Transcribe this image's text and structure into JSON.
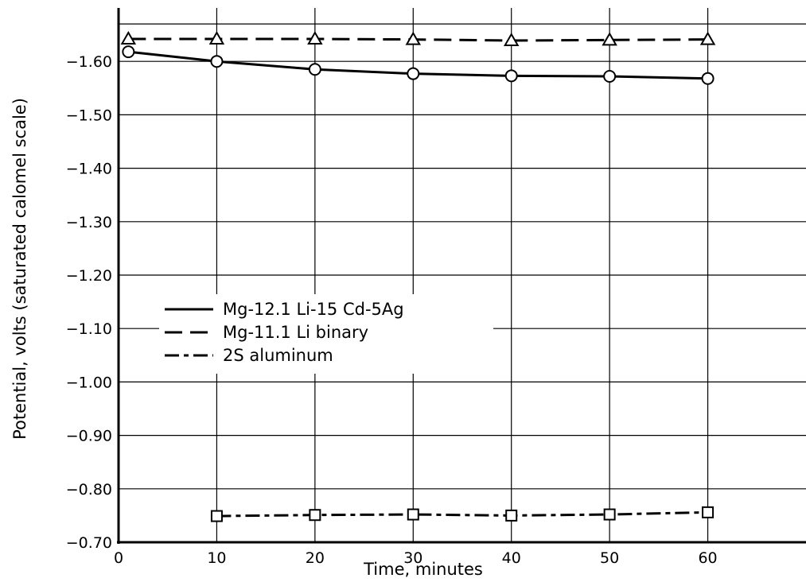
{
  "chart_data": {
    "type": "line",
    "xlabel": "Time, minutes",
    "ylabel": "Potential, volts (saturated calomel scale)",
    "xlim": [
      0,
      70
    ],
    "ylim": [
      -0.7,
      -1.7
    ],
    "x_ticks": [
      0,
      10,
      20,
      30,
      40,
      50,
      60
    ],
    "x_tick_labels": [
      "0",
      "10",
      "20",
      "30",
      "40",
      "50",
      "60"
    ],
    "y_ticks": [
      -0.7,
      -0.8,
      -0.9,
      -1.0,
      -1.1,
      -1.2,
      -1.3,
      -1.4,
      -1.5,
      -1.6
    ],
    "y_tick_labels": [
      "−0.70",
      "−0.80",
      "−0.90",
      "−1.00",
      "−1.10",
      "−1.20",
      "−1.30",
      "−1.40",
      "−1.50",
      "−1.60"
    ],
    "grid": true,
    "legend_position": "center-left",
    "series": [
      {
        "name": "Mg-12.1 Li-15 Cd-5Ag",
        "line_style": "solid",
        "marker": "circle",
        "x": [
          1,
          10,
          20,
          30,
          40,
          50,
          60
        ],
        "y": [
          -1.618,
          -1.6,
          -1.585,
          -1.577,
          -1.573,
          -1.572,
          -1.568
        ]
      },
      {
        "name": "Mg-11.1 Li binary",
        "line_style": "dashed",
        "marker": "triangle",
        "x": [
          1,
          10,
          20,
          30,
          40,
          50,
          60
        ],
        "y": [
          -1.642,
          -1.642,
          -1.642,
          -1.641,
          -1.639,
          -1.64,
          -1.641
        ]
      },
      {
        "name": "2S aluminum",
        "line_style": "dash-dot",
        "marker": "square",
        "x": [
          10,
          20,
          30,
          40,
          50,
          60
        ],
        "y": [
          -0.749,
          -0.751,
          -0.752,
          -0.75,
          -0.752,
          -0.756
        ]
      }
    ]
  }
}
